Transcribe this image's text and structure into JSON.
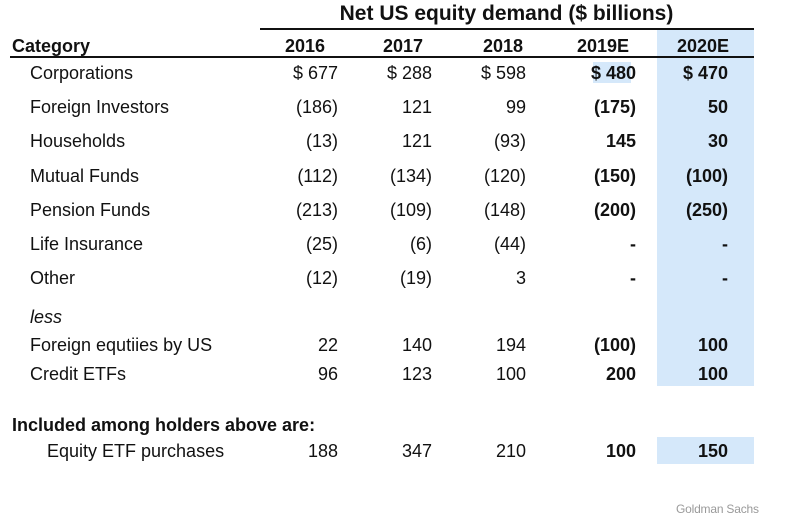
{
  "title": "Net US equity demand ($ billions)",
  "header": {
    "category": "Category",
    "years": [
      "2016",
      "2017",
      "2018",
      "2019E",
      "2020E"
    ]
  },
  "rows": [
    {
      "label": "Corporations",
      "values": [
        "$ 677",
        "$ 288",
        "$ 598",
        "$ 480",
        "$ 470"
      ]
    },
    {
      "label": "Foreign Investors",
      "values": [
        "(186)",
        "121",
        "99",
        "(175)",
        "50"
      ]
    },
    {
      "label": "Households",
      "values": [
        "(13)",
        "121",
        "(93)",
        "145",
        "30"
      ]
    },
    {
      "label": "Mutual Funds",
      "values": [
        "(112)",
        "(134)",
        "(120)",
        "(150)",
        "(100)"
      ]
    },
    {
      "label": "Pension Funds",
      "values": [
        "(213)",
        "(109)",
        "(148)",
        "(200)",
        "(250)"
      ]
    },
    {
      "label": "Life Insurance",
      "values": [
        "(25)",
        "(6)",
        "(44)",
        "-",
        "-"
      ]
    },
    {
      "label": "Other",
      "values": [
        "(12)",
        "(19)",
        "3",
        "-",
        "-"
      ]
    }
  ],
  "less_label": "less",
  "less_rows": [
    {
      "label": "Foreign equtiies by US",
      "values": [
        "22",
        "140",
        "194",
        "(100)",
        "100"
      ]
    },
    {
      "label": "Credit ETFs",
      "values": [
        "96",
        "123",
        "100",
        "200",
        "100"
      ]
    }
  ],
  "included_label": "Included among holders above are:",
  "included_rows": [
    {
      "label": "Equity ETF purchases",
      "values": [
        "188",
        "347",
        "210",
        "100",
        "150"
      ]
    }
  ],
  "source": "Goldman Sachs",
  "colors": {
    "highlight": "#d5e8fa",
    "text": "#111111",
    "source": "#9a9a9a"
  }
}
